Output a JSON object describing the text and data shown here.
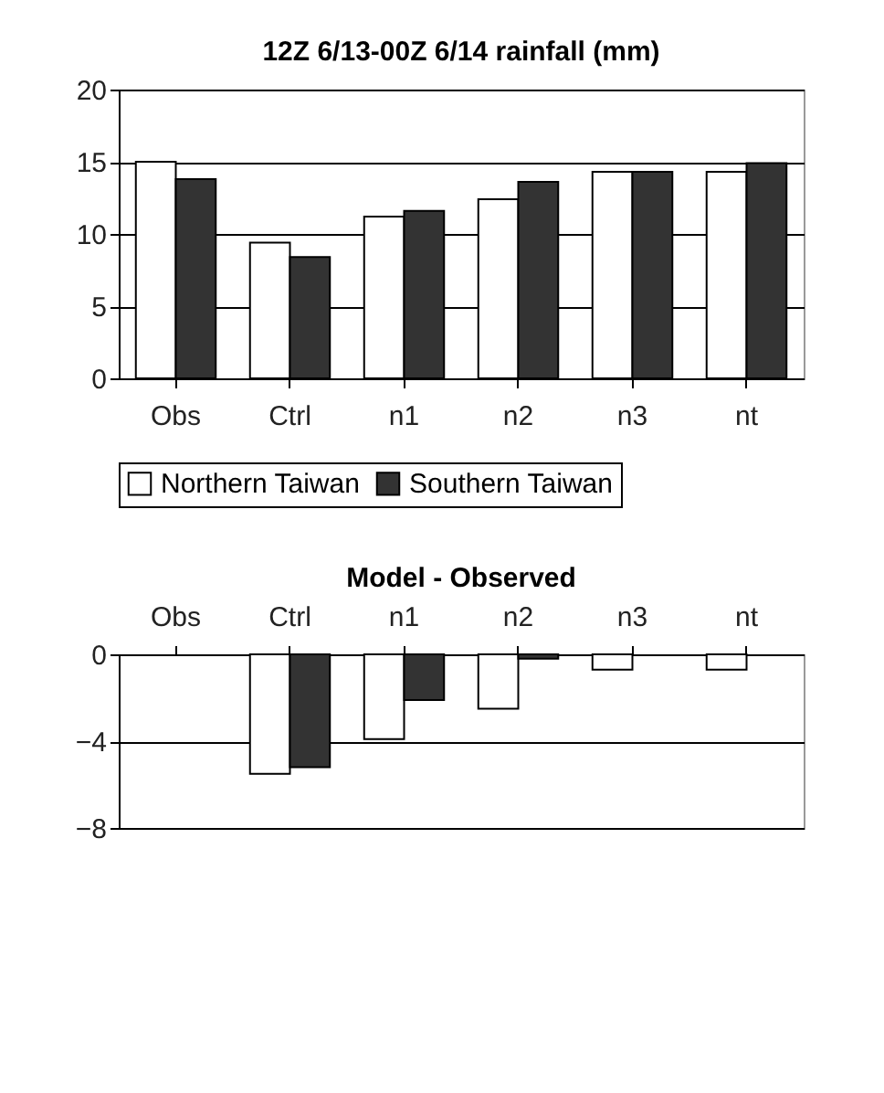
{
  "chart_data": [
    {
      "type": "bar",
      "title": "12Z 6/13-00Z 6/14 rainfall (mm)",
      "categories": [
        "Obs",
        "Ctrl",
        "n1",
        "n2",
        "n3",
        "nt"
      ],
      "series": [
        {
          "name": "Northern Taiwan",
          "color": "#ffffff",
          "values": [
            15,
            9.4,
            11.2,
            12.4,
            14.3,
            14.3
          ]
        },
        {
          "name": "Southern Taiwan",
          "color": "#333333",
          "values": [
            13.8,
            8.4,
            11.6,
            13.6,
            14.3,
            14.9
          ]
        }
      ],
      "ylim": [
        0,
        20
      ],
      "yticks": [
        0,
        5,
        10,
        15,
        20
      ],
      "grid": "y",
      "legend": "bottom"
    },
    {
      "type": "bar",
      "title": "Model - Observed",
      "categories": [
        "Obs",
        "Ctrl",
        "n1",
        "n2",
        "n3",
        "nt"
      ],
      "series": [
        {
          "color": "#ffffff",
          "values": [
            0,
            -5.5,
            -3.9,
            -2.5,
            -0.7,
            -0.7
          ]
        },
        {
          "color": "#333333",
          "values": [
            0,
            -5.2,
            -2.1,
            -0.2,
            0,
            0
          ]
        }
      ],
      "ylim": [
        -8,
        0
      ],
      "yticks": [
        -8,
        -4,
        0
      ],
      "grid": "y"
    }
  ]
}
